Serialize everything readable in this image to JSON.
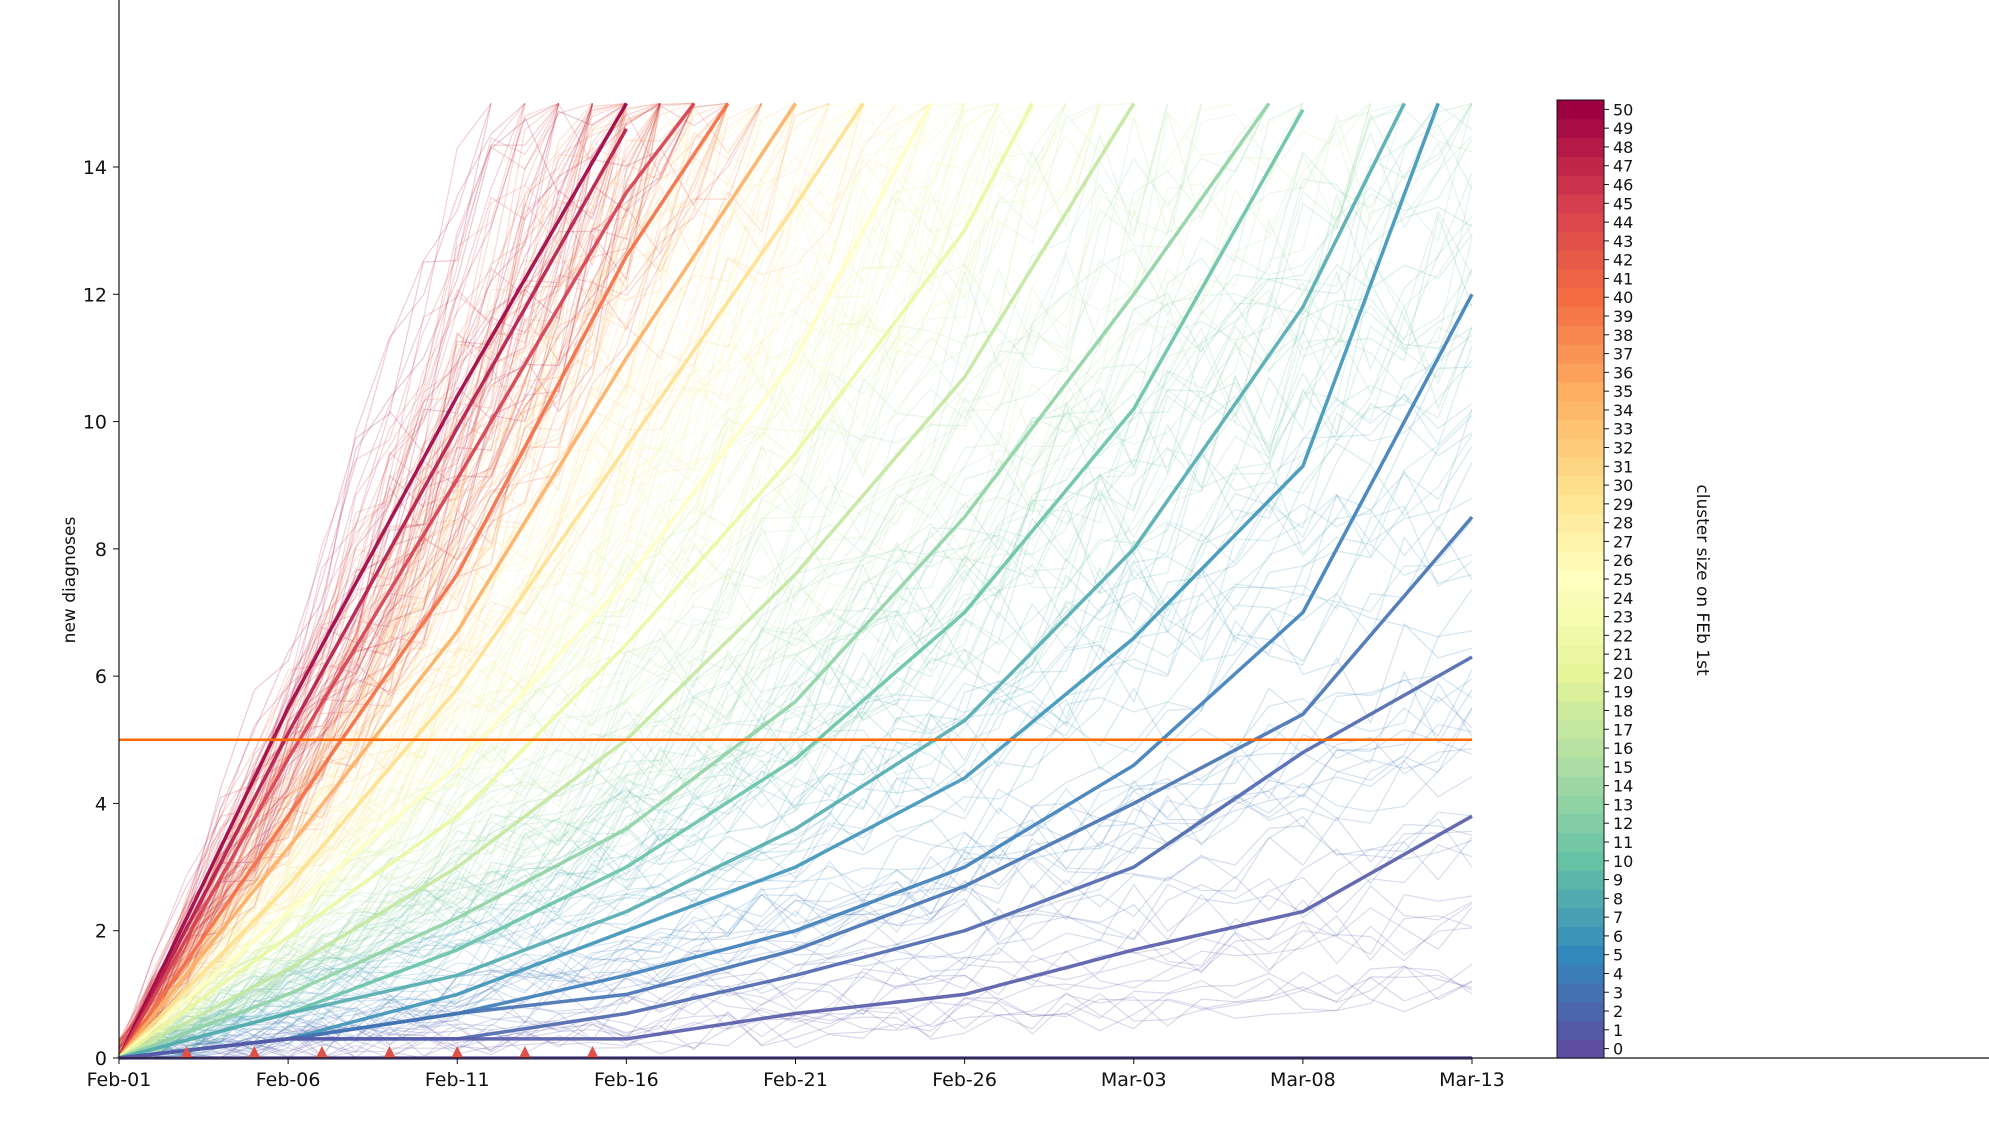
{
  "chart_data": {
    "type": "line",
    "title": "",
    "xlabel": "",
    "ylabel": "new diagnoses",
    "x_ticks": [
      "Feb-01",
      "Feb-06",
      "Feb-11",
      "Feb-16",
      "Feb-21",
      "Feb-26",
      "Mar-03",
      "Mar-08",
      "Mar-13"
    ],
    "x_range_days": [
      0,
      40
    ],
    "y_ticks": [
      0,
      2,
      4,
      6,
      8,
      10,
      12,
      14
    ],
    "ylim": [
      0,
      16
    ],
    "grid": false,
    "threshold": {
      "y": 5,
      "color": "#ff6a00"
    },
    "markers": {
      "shape": "triangle",
      "color": "#e0504a",
      "x_days": [
        2,
        4,
        6,
        8,
        10,
        12,
        14
      ]
    },
    "colorbar": {
      "label": "cluster size on FEb 1st",
      "min": 0,
      "max": 50,
      "ticks": [
        0,
        1,
        2,
        3,
        4,
        5,
        6,
        7,
        8,
        9,
        10,
        11,
        12,
        13,
        14,
        15,
        16,
        17,
        18,
        19,
        20,
        21,
        22,
        23,
        24,
        25,
        26,
        27,
        28,
        29,
        30,
        31,
        32,
        33,
        34,
        35,
        36,
        37,
        38,
        39,
        40,
        41,
        42,
        43,
        44,
        45,
        46,
        47,
        48,
        49,
        50
      ],
      "colormap": "Spectral",
      "stops": [
        "#5e4fa2",
        "#3288bd",
        "#66c2a5",
        "#abdda4",
        "#e6f598",
        "#ffffbf",
        "#fee08b",
        "#fdae61",
        "#f46d43",
        "#d53e4f",
        "#9e0142"
      ]
    },
    "highlighted_series": [
      {
        "cluster_size": 50,
        "x_days": [
          0,
          5,
          10,
          15
        ],
        "values": [
          0,
          5.5,
          10.4,
          15.2
        ]
      },
      {
        "cluster_size": 48,
        "x_days": [
          0,
          5,
          10,
          15
        ],
        "values": [
          0,
          5.1,
          9.9,
          14.6
        ]
      },
      {
        "cluster_size": 45,
        "x_days": [
          0,
          5,
          10,
          15,
          17
        ],
        "values": [
          0,
          4.7,
          9.1,
          13.6,
          15.2
        ]
      },
      {
        "cluster_size": 40,
        "x_days": [
          0,
          5,
          10,
          15,
          18
        ],
        "values": [
          0,
          3.8,
          7.6,
          12.6,
          15.0
        ]
      },
      {
        "cluster_size": 35,
        "x_days": [
          0,
          5,
          10,
          15,
          20
        ],
        "values": [
          0,
          3.3,
          6.7,
          11.0,
          15.0
        ]
      },
      {
        "cluster_size": 30,
        "x_days": [
          0,
          5,
          10,
          15,
          20,
          22
        ],
        "values": [
          0,
          2.7,
          5.8,
          9.6,
          13.4,
          15.0
        ]
      },
      {
        "cluster_size": 25,
        "x_days": [
          0,
          5,
          10,
          15,
          20,
          24
        ],
        "values": [
          0,
          2.3,
          4.6,
          7.5,
          11.0,
          15.0
        ]
      },
      {
        "cluster_size": 21,
        "x_days": [
          0,
          5,
          10,
          15,
          20,
          25,
          27
        ],
        "values": [
          0,
          1.9,
          3.8,
          6.5,
          9.5,
          13.0,
          15.0
        ]
      },
      {
        "cluster_size": 17,
        "x_days": [
          0,
          5,
          10,
          15,
          20,
          25,
          30
        ],
        "values": [
          0,
          1.4,
          3.0,
          5.0,
          7.6,
          10.7,
          15.0
        ]
      },
      {
        "cluster_size": 13,
        "x_days": [
          0,
          5,
          10,
          15,
          20,
          25,
          30,
          34
        ],
        "values": [
          0,
          1.0,
          2.2,
          3.6,
          5.6,
          8.5,
          12.0,
          15.0
        ]
      },
      {
        "cluster_size": 10,
        "x_days": [
          0,
          5,
          10,
          15,
          20,
          25,
          30,
          35
        ],
        "values": [
          0,
          0.7,
          1.7,
          3.0,
          4.7,
          7.0,
          10.2,
          14.9
        ]
      },
      {
        "cluster_size": 8,
        "x_days": [
          0,
          5,
          10,
          15,
          20,
          25,
          30,
          35,
          38
        ],
        "values": [
          0,
          0.7,
          1.3,
          2.3,
          3.6,
          5.3,
          8.0,
          11.8,
          15.0
        ]
      },
      {
        "cluster_size": 6,
        "x_days": [
          0,
          5,
          10,
          15,
          20,
          25,
          30,
          35,
          39
        ],
        "values": [
          0,
          0.3,
          1.0,
          2.0,
          3.0,
          4.4,
          6.6,
          9.3,
          15.0
        ]
      },
      {
        "cluster_size": 4,
        "x_days": [
          0,
          5,
          10,
          15,
          20,
          25,
          30,
          35,
          40
        ],
        "values": [
          0,
          0.3,
          0.7,
          1.3,
          2.0,
          3.0,
          4.6,
          7.0,
          12.0
        ]
      },
      {
        "cluster_size": 3,
        "x_days": [
          0,
          5,
          10,
          15,
          20,
          25,
          30,
          35,
          40
        ],
        "values": [
          0,
          0.3,
          0.7,
          1.0,
          1.7,
          2.7,
          4.0,
          5.4,
          8.5
        ]
      },
      {
        "cluster_size": 2,
        "x_days": [
          0,
          5,
          10,
          15,
          20,
          25,
          30,
          35,
          40
        ],
        "values": [
          0,
          0.3,
          0.3,
          0.7,
          1.3,
          2.0,
          3.0,
          4.8,
          6.3
        ]
      },
      {
        "cluster_size": 1,
        "x_days": [
          0,
          5,
          10,
          15,
          20,
          25,
          30,
          35,
          40
        ],
        "values": [
          0,
          0.3,
          0.3,
          0.3,
          0.7,
          1.0,
          1.7,
          2.3,
          3.8
        ]
      },
      {
        "cluster_size": 0,
        "x_days": [
          0,
          10,
          20,
          30,
          40
        ],
        "values": [
          0,
          0,
          0,
          0,
          0
        ]
      }
    ],
    "background_ensemble": {
      "description_per_size": "many faint simulated trajectories per cluster size",
      "runs_per_size": 6
    }
  }
}
